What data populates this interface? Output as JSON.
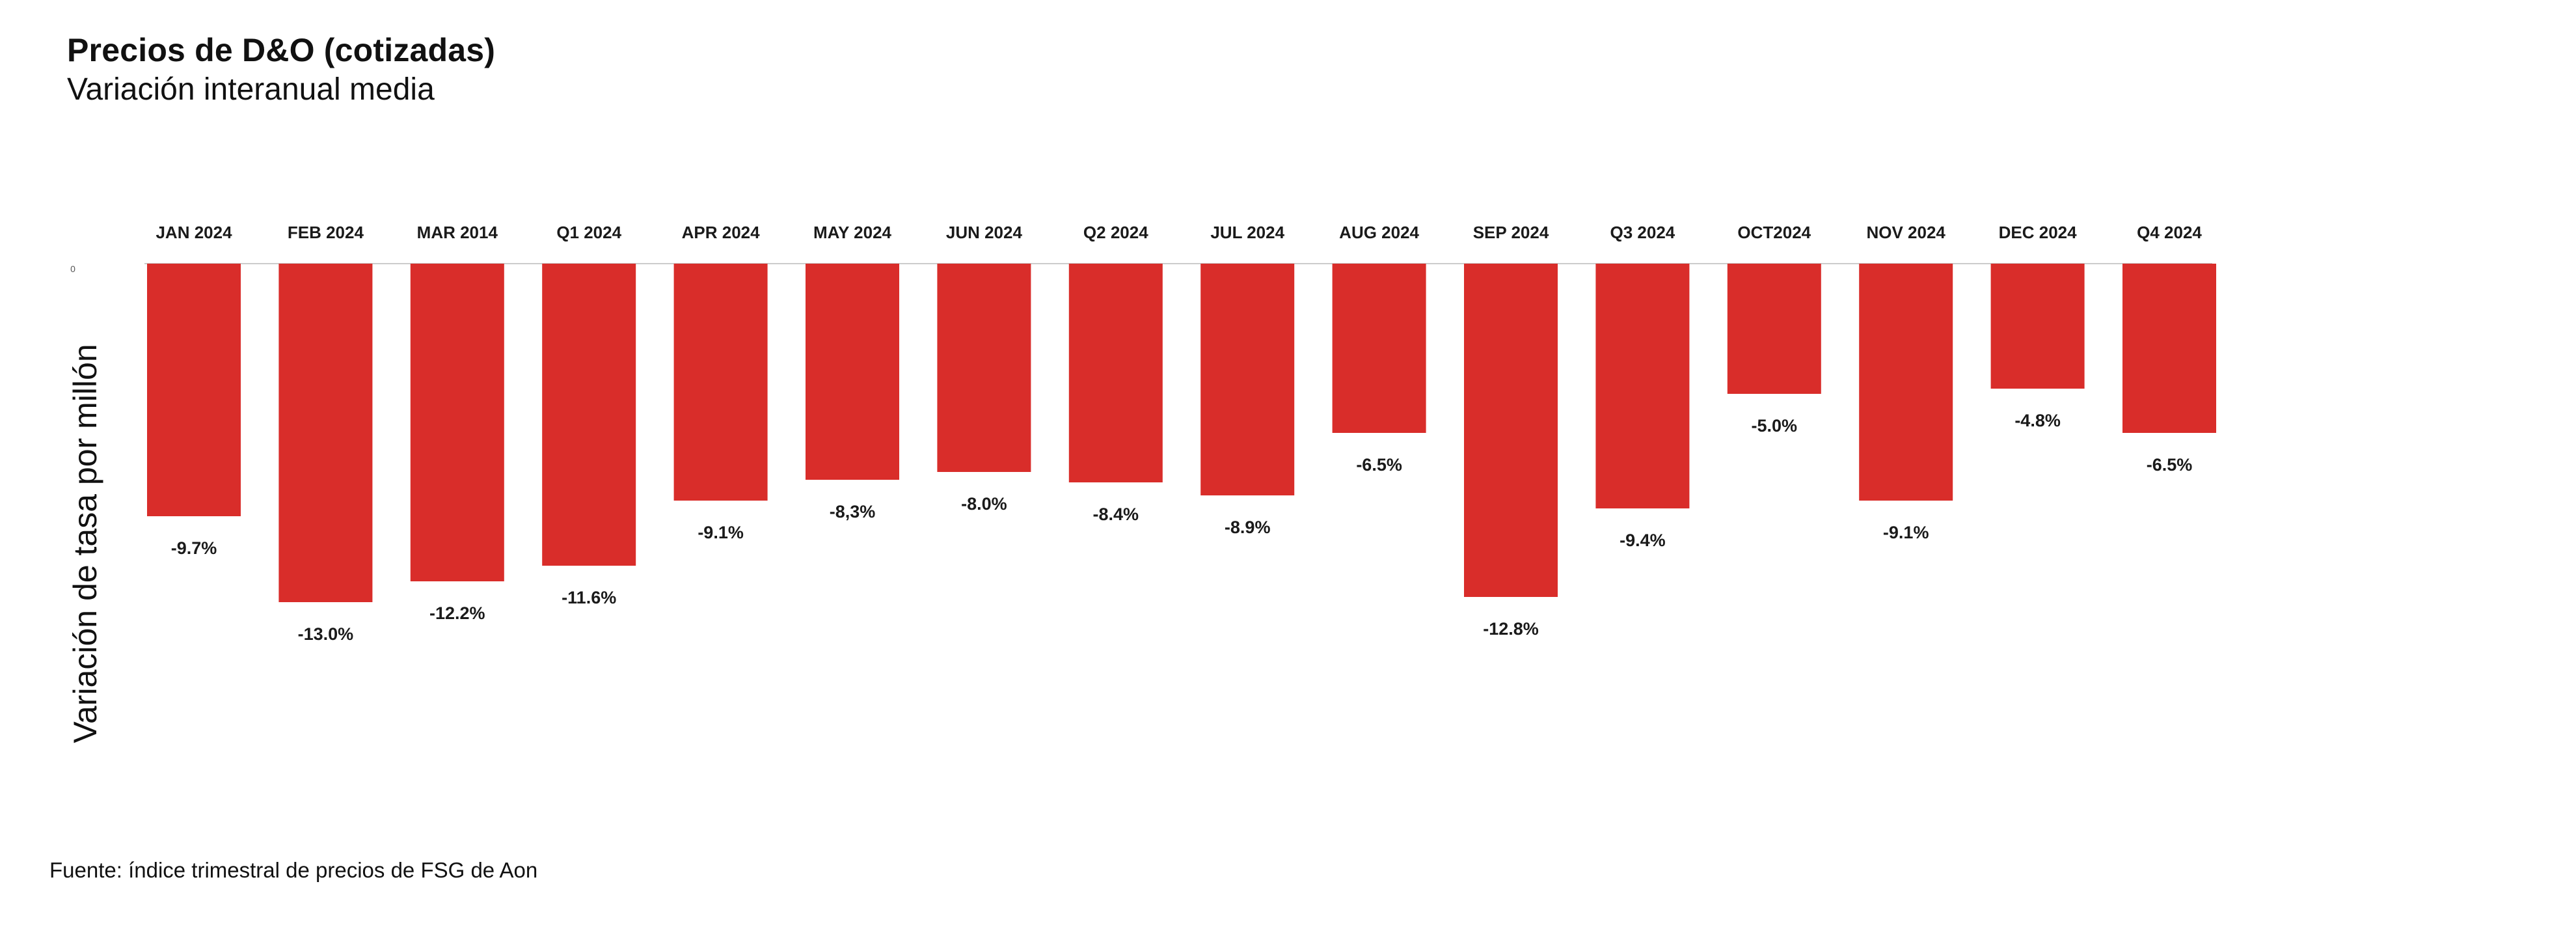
{
  "title": "Precios de D&O (cotizadas)",
  "subtitle": "Variación interanual media",
  "source": "Fuente: índice trimestral de precios de FSG de Aon",
  "colors": {
    "bar": "#d92d2a",
    "baseline": "#cccccc"
  },
  "chart_data": {
    "type": "bar",
    "title": "Precios de D&O (cotizadas)",
    "subtitle": "Variación interanual media",
    "xlabel": "",
    "ylabel": "Variación de tasa por millón",
    "categories": [
      "JAN 2024",
      "FEB 2024",
      "MAR 2014",
      "Q1 2024",
      "APR 2024",
      "MAY 2024",
      "JUN 2024",
      "Q2 2024",
      "JUL 2024",
      "AUG 2024",
      "SEP 2024",
      "Q3 2024",
      "OCT2024",
      "NOV 2024",
      "DEC 2024",
      "Q4 2024"
    ],
    "values": [
      -9.7,
      -13.0,
      -12.2,
      -11.6,
      -9.1,
      -8.3,
      -8.0,
      -8.4,
      -8.9,
      -6.5,
      -12.8,
      -9.4,
      -5.0,
      -9.1,
      -4.8,
      -6.5
    ],
    "value_labels": [
      "-9.7%",
      "-13.0%",
      "-12.2%",
      "-11.6%",
      "-9.1%",
      "-8,3%",
      "-8.0%",
      "-8.4%",
      "-8.9%",
      "-6.5%",
      "-12.8%",
      "-9.4%",
      "-5.0%",
      "-9.1%",
      "-4.8%",
      "-6.5%"
    ],
    "zero_tick": "0",
    "ylim": [
      -13.0,
      0
    ],
    "legend": "none",
    "grid": false,
    "category_axis_position": "top"
  }
}
